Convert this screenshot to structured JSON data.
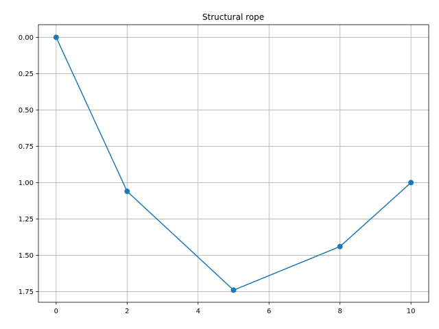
{
  "chart_data": {
    "type": "line",
    "title": "Structural rope",
    "xlabel": "",
    "ylabel": "",
    "x": [
      0,
      2,
      5,
      8,
      10
    ],
    "series": [
      {
        "values": [
          0.0,
          1.06,
          1.74,
          1.44,
          1.0
        ]
      }
    ],
    "xlim": [
      -0.5,
      10.5
    ],
    "ylim": [
      1.8235,
      -0.087
    ],
    "y_inverted": true,
    "xticks": [
      0,
      2,
      4,
      6,
      8,
      10
    ],
    "xtick_labels": [
      "0",
      "2",
      "4",
      "6",
      "8",
      "10"
    ],
    "yticks": [
      0.0,
      0.25,
      0.5,
      0.75,
      1.0,
      1.25,
      1.5,
      1.75
    ],
    "ytick_labels": [
      "0.00",
      "0.25",
      "0.50",
      "0.75",
      "1.00",
      "1.25",
      "1.50",
      "1.75"
    ],
    "grid": true,
    "marker": "circle",
    "colors": {
      "line": "#1f77b4",
      "grid": "#b0b0b0",
      "axes": "#000000"
    }
  }
}
